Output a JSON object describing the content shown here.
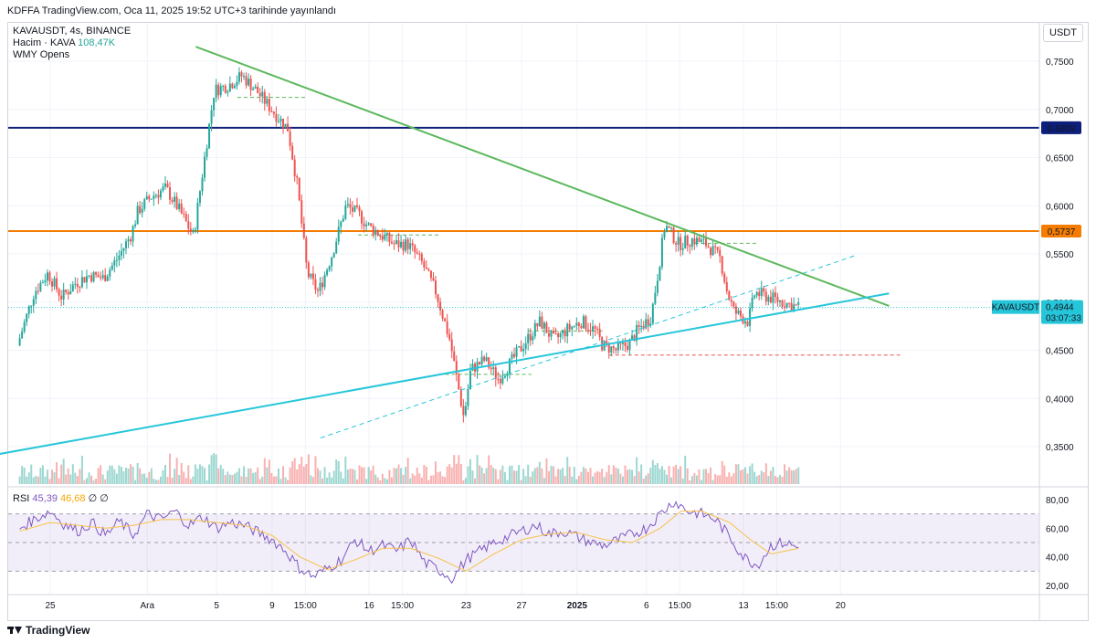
{
  "header": {
    "text": "KDFFA TradingView.com, Oca 11, 2025 19:52 UTC+3 tarihinde yayınlandı"
  },
  "legend": {
    "symbol_line": "KAVAUSDT, 4s, BINANCE",
    "volume_label": "Hacim · KAVA",
    "volume_value": "108,47K",
    "indicator": "WMY Opens"
  },
  "rsi_legend": {
    "label": "RSI",
    "rsi_value": "45,39",
    "ma_value": "46,68",
    "extra1": "∅",
    "extra2": "∅"
  },
  "currency_button": "USDT",
  "footer": {
    "brand": "TradingView"
  },
  "colors": {
    "up": "#26a69a",
    "down": "#ef5350",
    "green_line": "#5cb85c",
    "cyan_line": "#26c6da",
    "navy_line": "#0d1f7a",
    "orange_line": "#f57c00",
    "rsi": "#7e57c2",
    "rsi_ma": "#f7c24a"
  },
  "chart_data": {
    "type": "candlestick",
    "symbol": "KAVAUSDT",
    "timeframe": "4s",
    "exchange": "BINANCE",
    "price_range": [
      0.31,
      0.78
    ],
    "price_ticks": [
      "0,7500",
      "0,7000",
      "0,6500",
      "0,6000",
      "0,5500",
      "0,5000",
      "0,4500",
      "0,4000",
      "0,3500"
    ],
    "price_tick_values": [
      0.75,
      0.7,
      0.65,
      0.6,
      0.55,
      0.5,
      0.45,
      0.4,
      0.35
    ],
    "time_ticks": [
      "25",
      "Ara",
      "5",
      "9",
      "15:00",
      "16",
      "15:00",
      "23",
      "27",
      "2025",
      "6",
      "15:00",
      "13",
      "15:00",
      "20"
    ],
    "time_tick_days": [
      0,
      7,
      12,
      16,
      18.4,
      23,
      25.4,
      30,
      34,
      38,
      43,
      45.4,
      50,
      52.4,
      57
    ],
    "horizontal_levels": [
      {
        "label": "0,6809",
        "price": 0.6809,
        "color": "#0d1f7a"
      },
      {
        "label": "0,5737",
        "price": 0.5737,
        "color": "#f57c00"
      }
    ],
    "last_price": {
      "symbol_label": "KAVAUSDT",
      "price_label": "0,4944",
      "countdown": "03:07:33",
      "price": 0.4944
    },
    "trendlines": [
      {
        "name": "resistance",
        "from": [
          10.5,
          0.765
        ],
        "to": [
          60.5,
          0.496
        ]
      },
      {
        "name": "support",
        "from": [
          -6.5,
          0.335
        ],
        "to": [
          60.5,
          0.509
        ]
      },
      {
        "name": "support-2",
        "from": [
          19.5,
          0.359
        ],
        "to": [
          58,
          0.548
        ],
        "dashed": true
      }
    ],
    "dashed_levels": [
      {
        "price": 0.7125,
        "from_day": 13.5,
        "to_day": 18.5
      },
      {
        "price": 0.5697,
        "from_day": 22.2,
        "to_day": 28
      },
      {
        "price": 0.561,
        "from_day": 46.5,
        "to_day": 51
      },
      {
        "price": 0.425,
        "from_day": 28.5,
        "to_day": 34.7
      },
      {
        "price": 0.47,
        "from_day": 34.5,
        "to_day": 40
      },
      {
        "price": 0.445,
        "from_day": 40.3,
        "to_day": 61.3,
        "color": "#ef5350"
      }
    ],
    "rsi_ticks": [
      "80,00",
      "60,00",
      "40,00",
      "20,00"
    ],
    "rsi_tick_values": [
      80,
      60,
      40,
      20
    ],
    "rsi_band": [
      30,
      70
    ],
    "price_path": [
      [
        -2.2,
        0.455
      ],
      [
        -1,
        0.51
      ],
      [
        0,
        0.53
      ],
      [
        1,
        0.505
      ],
      [
        2,
        0.52
      ],
      [
        3,
        0.528
      ],
      [
        4,
        0.525
      ],
      [
        5,
        0.545
      ],
      [
        6,
        0.57
      ],
      [
        6.5,
        0.595
      ],
      [
        7.5,
        0.61
      ],
      [
        8.5,
        0.618
      ],
      [
        9.5,
        0.595
      ],
      [
        10.5,
        0.568
      ],
      [
        11.5,
        0.67
      ],
      [
        12,
        0.72
      ],
      [
        13,
        0.725
      ],
      [
        14,
        0.735
      ],
      [
        15,
        0.72
      ],
      [
        16,
        0.702
      ],
      [
        17.3,
        0.68
      ],
      [
        18,
        0.62
      ],
      [
        18.7,
        0.53
      ],
      [
        19.5,
        0.51
      ],
      [
        20.5,
        0.55
      ],
      [
        21.5,
        0.6
      ],
      [
        22.5,
        0.59
      ],
      [
        23,
        0.58
      ],
      [
        24,
        0.57
      ],
      [
        25,
        0.56
      ],
      [
        26,
        0.56
      ],
      [
        27,
        0.54
      ],
      [
        28,
        0.51
      ],
      [
        29,
        0.46
      ],
      [
        29.5,
        0.42
      ],
      [
        30,
        0.38
      ],
      [
        30.5,
        0.43
      ],
      [
        31.5,
        0.44
      ],
      [
        32.5,
        0.42
      ],
      [
        33.5,
        0.44
      ],
      [
        34.5,
        0.46
      ],
      [
        35.5,
        0.48
      ],
      [
        36.5,
        0.46
      ],
      [
        37.5,
        0.472
      ],
      [
        38.5,
        0.48
      ],
      [
        39.5,
        0.47
      ],
      [
        40,
        0.455
      ],
      [
        41,
        0.45
      ],
      [
        42,
        0.458
      ],
      [
        42.5,
        0.47
      ],
      [
        43.5,
        0.485
      ],
      [
        44,
        0.53
      ],
      [
        44.5,
        0.58
      ],
      [
        45.5,
        0.56
      ],
      [
        46.5,
        0.565
      ],
      [
        47.5,
        0.56
      ],
      [
        48.5,
        0.545
      ],
      [
        49,
        0.51
      ],
      [
        49.5,
        0.49
      ],
      [
        50.5,
        0.48
      ],
      [
        51,
        0.51
      ],
      [
        52,
        0.505
      ],
      [
        53,
        0.5
      ],
      [
        54,
        0.495
      ]
    ],
    "rsi_path": [
      [
        -2.2,
        60
      ],
      [
        -1,
        67
      ],
      [
        0,
        72
      ],
      [
        1,
        63
      ],
      [
        2,
        58
      ],
      [
        3,
        64
      ],
      [
        4,
        55
      ],
      [
        5,
        65
      ],
      [
        6,
        55
      ],
      [
        7,
        70
      ],
      [
        8,
        66
      ],
      [
        9,
        72
      ],
      [
        10,
        62
      ],
      [
        11,
        68
      ],
      [
        12,
        60
      ],
      [
        13,
        64
      ],
      [
        14,
        62
      ],
      [
        15,
        57
      ],
      [
        16,
        52
      ],
      [
        17,
        44
      ],
      [
        18,
        32
      ],
      [
        19,
        26
      ],
      [
        20,
        32
      ],
      [
        21,
        38
      ],
      [
        22,
        52
      ],
      [
        23,
        44
      ],
      [
        24,
        48
      ],
      [
        25,
        44
      ],
      [
        26,
        52
      ],
      [
        27,
        36
      ],
      [
        28,
        31
      ],
      [
        29,
        25
      ],
      [
        30,
        38
      ],
      [
        31,
        44
      ],
      [
        32,
        50
      ],
      [
        33,
        54
      ],
      [
        34,
        58
      ],
      [
        35,
        62
      ],
      [
        36,
        56
      ],
      [
        37,
        58
      ],
      [
        38,
        54
      ],
      [
        39,
        50
      ],
      [
        40,
        48
      ],
      [
        41,
        52
      ],
      [
        42,
        56
      ],
      [
        43,
        60
      ],
      [
        44,
        70
      ],
      [
        45,
        79
      ],
      [
        46,
        72
      ],
      [
        47,
        70
      ],
      [
        48,
        66
      ],
      [
        49,
        54
      ],
      [
        50,
        40
      ],
      [
        51,
        34
      ],
      [
        52,
        48
      ],
      [
        53,
        50
      ],
      [
        54,
        46
      ]
    ],
    "rsi_ma_path": [
      [
        -2.2,
        58
      ],
      [
        0,
        64
      ],
      [
        2,
        62
      ],
      [
        4,
        60
      ],
      [
        6,
        62
      ],
      [
        8,
        66
      ],
      [
        10,
        66
      ],
      [
        12,
        64
      ],
      [
        14,
        62
      ],
      [
        16,
        55
      ],
      [
        18,
        40
      ],
      [
        20,
        31
      ],
      [
        22,
        38
      ],
      [
        24,
        46
      ],
      [
        26,
        46
      ],
      [
        28,
        39
      ],
      [
        30,
        30
      ],
      [
        32,
        42
      ],
      [
        34,
        52
      ],
      [
        36,
        56
      ],
      [
        38,
        57
      ],
      [
        40,
        52
      ],
      [
        42,
        50
      ],
      [
        44,
        60
      ],
      [
        45.5,
        72
      ],
      [
        47,
        72
      ],
      [
        49,
        64
      ],
      [
        50.5,
        52
      ],
      [
        52,
        42
      ],
      [
        53,
        44
      ],
      [
        54,
        46
      ]
    ]
  }
}
